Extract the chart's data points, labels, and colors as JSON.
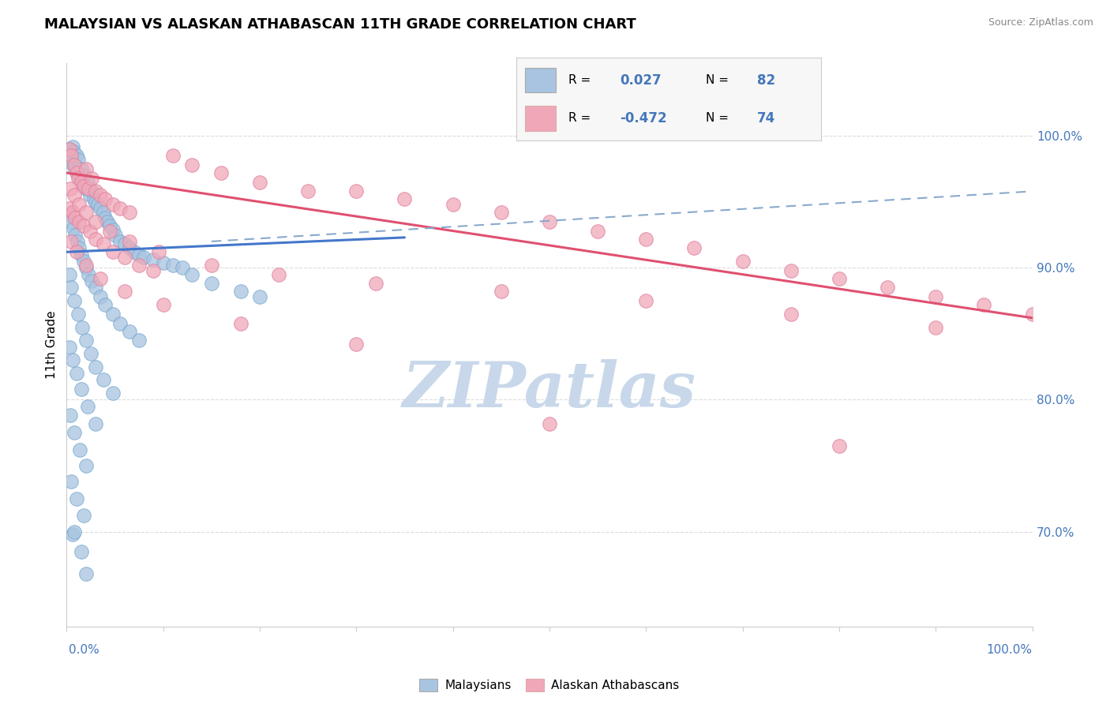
{
  "title": "MALAYSIAN VS ALASKAN ATHABASCAN 11TH GRADE CORRELATION CHART",
  "source_text": "Source: ZipAtlas.com",
  "ylabel": "11th Grade",
  "ylabel_right_ticks": [
    "70.0%",
    "80.0%",
    "90.0%",
    "100.0%"
  ],
  "ylabel_right_values": [
    0.7,
    0.8,
    0.9,
    1.0
  ],
  "xmin": 0.0,
  "xmax": 1.0,
  "ymin": 0.628,
  "ymax": 1.055,
  "blue_color": "#a8c4e0",
  "pink_color": "#f0a8b8",
  "blue_edge_color": "#7aaad0",
  "pink_edge_color": "#e080a0",
  "blue_line_color": "#4477cc",
  "pink_line_color": "#e05070",
  "dashed_line_color": "#88aacc",
  "watermark_color": "#c8d8ea",
  "blue_line_x": [
    0.0,
    0.35
  ],
  "blue_line_y": [
    0.912,
    0.923
  ],
  "pink_line_x": [
    0.0,
    1.0
  ],
  "pink_line_y": [
    0.972,
    0.862
  ],
  "dashed_line_x": [
    0.15,
    1.0
  ],
  "dashed_line_y": [
    0.92,
    0.958
  ],
  "blue_scatter_x": [
    0.003,
    0.004,
    0.005,
    0.006,
    0.007,
    0.008,
    0.009,
    0.01,
    0.011,
    0.012,
    0.013,
    0.014,
    0.015,
    0.016,
    0.017,
    0.018,
    0.02,
    0.022,
    0.024,
    0.026,
    0.028,
    0.03,
    0.032,
    0.035,
    0.038,
    0.04,
    0.042,
    0.045,
    0.048,
    0.05,
    0.055,
    0.06,
    0.065,
    0.07,
    0.075,
    0.08,
    0.09,
    0.1,
    0.11,
    0.12,
    0.13,
    0.15,
    0.18,
    0.2,
    0.003,
    0.005,
    0.007,
    0.009,
    0.011,
    0.013,
    0.015,
    0.018,
    0.02,
    0.023,
    0.026,
    0.03,
    0.035,
    0.04,
    0.048,
    0.055,
    0.065,
    0.075,
    0.003,
    0.005,
    0.008,
    0.012,
    0.016,
    0.02,
    0.025,
    0.03,
    0.038,
    0.048,
    0.003,
    0.006,
    0.01,
    0.015,
    0.022,
    0.03,
    0.004,
    0.008,
    0.014,
    0.02,
    0.005,
    0.01,
    0.018,
    0.006,
    0.015,
    0.008,
    0.02
  ],
  "blue_scatter_y": [
    0.99,
    0.985,
    0.98,
    0.992,
    0.988,
    0.978,
    0.975,
    0.985,
    0.972,
    0.982,
    0.97,
    0.968,
    0.975,
    0.965,
    0.962,
    0.97,
    0.96,
    0.965,
    0.955,
    0.958,
    0.952,
    0.95,
    0.948,
    0.945,
    0.942,
    0.938,
    0.935,
    0.932,
    0.929,
    0.925,
    0.92,
    0.918,
    0.915,
    0.912,
    0.91,
    0.908,
    0.906,
    0.904,
    0.902,
    0.9,
    0.895,
    0.888,
    0.882,
    0.878,
    0.94,
    0.935,
    0.93,
    0.925,
    0.92,
    0.915,
    0.91,
    0.905,
    0.9,
    0.895,
    0.89,
    0.885,
    0.878,
    0.872,
    0.865,
    0.858,
    0.852,
    0.845,
    0.895,
    0.885,
    0.875,
    0.865,
    0.855,
    0.845,
    0.835,
    0.825,
    0.815,
    0.805,
    0.84,
    0.83,
    0.82,
    0.808,
    0.795,
    0.782,
    0.788,
    0.775,
    0.762,
    0.75,
    0.738,
    0.725,
    0.712,
    0.698,
    0.685,
    0.7,
    0.668
  ],
  "pink_scatter_x": [
    0.003,
    0.005,
    0.008,
    0.01,
    0.012,
    0.015,
    0.018,
    0.02,
    0.023,
    0.026,
    0.03,
    0.035,
    0.04,
    0.048,
    0.055,
    0.065,
    0.003,
    0.006,
    0.009,
    0.013,
    0.018,
    0.024,
    0.03,
    0.038,
    0.048,
    0.06,
    0.075,
    0.09,
    0.11,
    0.13,
    0.16,
    0.2,
    0.25,
    0.3,
    0.35,
    0.4,
    0.45,
    0.5,
    0.55,
    0.6,
    0.65,
    0.7,
    0.75,
    0.8,
    0.85,
    0.9,
    0.95,
    1.0,
    0.004,
    0.008,
    0.013,
    0.02,
    0.03,
    0.045,
    0.065,
    0.095,
    0.15,
    0.22,
    0.32,
    0.45,
    0.6,
    0.75,
    0.9,
    0.005,
    0.01,
    0.02,
    0.035,
    0.06,
    0.1,
    0.18,
    0.3,
    0.5,
    0.8
  ],
  "pink_scatter_y": [
    0.99,
    0.985,
    0.978,
    0.972,
    0.968,
    0.965,
    0.962,
    0.975,
    0.96,
    0.968,
    0.958,
    0.955,
    0.952,
    0.948,
    0.945,
    0.942,
    0.945,
    0.942,
    0.938,
    0.935,
    0.932,
    0.928,
    0.922,
    0.918,
    0.912,
    0.908,
    0.902,
    0.898,
    0.985,
    0.978,
    0.972,
    0.965,
    0.958,
    0.958,
    0.952,
    0.948,
    0.942,
    0.935,
    0.928,
    0.922,
    0.915,
    0.905,
    0.898,
    0.892,
    0.885,
    0.878,
    0.872,
    0.865,
    0.96,
    0.955,
    0.948,
    0.942,
    0.935,
    0.928,
    0.92,
    0.912,
    0.902,
    0.895,
    0.888,
    0.882,
    0.875,
    0.865,
    0.855,
    0.92,
    0.912,
    0.902,
    0.892,
    0.882,
    0.872,
    0.858,
    0.842,
    0.782,
    0.765
  ]
}
